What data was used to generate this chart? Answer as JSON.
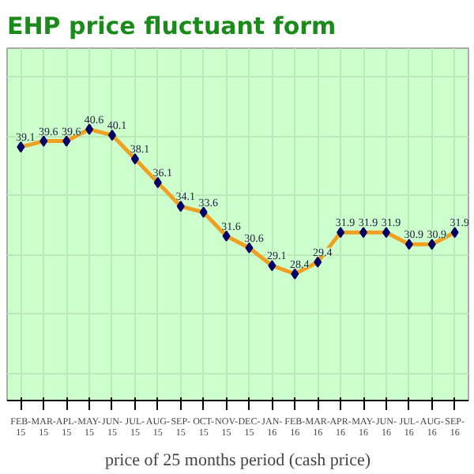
{
  "chart_data": {
    "type": "line",
    "title": "EHP price fluctuant form",
    "xlabel": "price of 25 months period (cash price)",
    "categories": [
      "FEB-15",
      "MAR-15",
      "APL-15",
      "MAY-15",
      "JUN-15",
      "JUL-15",
      "AUG-15",
      "SEP-15",
      "OCT-15",
      "NOV-15",
      "DEC-15",
      "JAN-16",
      "FEB-16",
      "MAR-16",
      "APR-16",
      "MAY-16",
      "JUN-16",
      "JUL-16",
      "AUG-16",
      "SEP-16"
    ],
    "series": [
      {
        "color": "#f0a020",
        "values": [
          39.1,
          39.6,
          39.6,
          40.6,
          40.1,
          38.1,
          36.1,
          34.1,
          33.6,
          31.6,
          30.6,
          29.1,
          28.4,
          29.4,
          31.9,
          31.9,
          31.9,
          30.9,
          30.9,
          31.9
        ]
      }
    ],
    "data_labels": true,
    "grid": true,
    "marker": "diamond",
    "tick_labels": "x",
    "line_style": "solid"
  }
}
